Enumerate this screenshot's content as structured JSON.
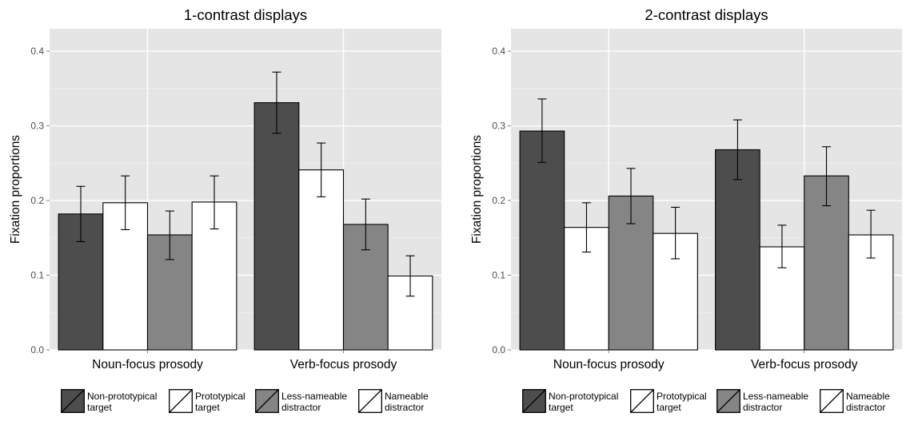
{
  "chart_data": [
    {
      "type": "bar",
      "title": "1-contrast displays",
      "xlabel": "",
      "ylabel": "Fixation proportions",
      "ylim": [
        0,
        0.43
      ],
      "yticks": [
        "0.0",
        "0.1",
        "0.2",
        "0.3",
        "0.4"
      ],
      "grid": true,
      "legend_position": "bottom",
      "categories": [
        "Noun-focus prosody",
        "Verb-focus prosody"
      ],
      "series": [
        {
          "name": "Non-prototypical target",
          "legend_lines": [
            "Non-prototypical",
            "target"
          ],
          "color": "#4d4d4d",
          "values": [
            0.182,
            0.331
          ],
          "err_low": [
            0.145,
            0.29
          ],
          "err_high": [
            0.219,
            0.372
          ]
        },
        {
          "name": "Prototypical target",
          "legend_lines": [
            "Prototypical",
            "target"
          ],
          "color": "#ffffff",
          "values": [
            0.197,
            0.241
          ],
          "err_low": [
            0.161,
            0.205
          ],
          "err_high": [
            0.233,
            0.277
          ]
        },
        {
          "name": "Less-nameable distractor",
          "legend_lines": [
            "Less-nameable",
            "distractor"
          ],
          "color": "#858585",
          "values": [
            0.154,
            0.168
          ],
          "err_low": [
            0.121,
            0.134
          ],
          "err_high": [
            0.186,
            0.202
          ]
        },
        {
          "name": "Nameable distractor",
          "legend_lines": [
            "Nameable",
            "distractor"
          ],
          "color": "#ffffff",
          "values": [
            0.198,
            0.099
          ],
          "err_low": [
            0.162,
            0.072
          ],
          "err_high": [
            0.233,
            0.126
          ]
        }
      ]
    },
    {
      "type": "bar",
      "title": "2-contrast displays",
      "xlabel": "",
      "ylabel": "Fixation proportions",
      "ylim": [
        0,
        0.43
      ],
      "yticks": [
        "0.0",
        "0.1",
        "0.2",
        "0.3",
        "0.4"
      ],
      "grid": true,
      "legend_position": "bottom",
      "categories": [
        "Noun-focus prosody",
        "Verb-focus prosody"
      ],
      "series": [
        {
          "name": "Non-prototypical target",
          "legend_lines": [
            "Non-prototypical",
            "target"
          ],
          "color": "#4d4d4d",
          "values": [
            0.293,
            0.268
          ],
          "err_low": [
            0.251,
            0.228
          ],
          "err_high": [
            0.336,
            0.308
          ]
        },
        {
          "name": "Prototypical target",
          "legend_lines": [
            "Prototypical",
            "target"
          ],
          "color": "#ffffff",
          "values": [
            0.164,
            0.138
          ],
          "err_low": [
            0.131,
            0.11
          ],
          "err_high": [
            0.197,
            0.167
          ]
        },
        {
          "name": "Less-nameable distractor",
          "legend_lines": [
            "Less-nameable",
            "distractor"
          ],
          "color": "#858585",
          "values": [
            0.206,
            0.233
          ],
          "err_low": [
            0.169,
            0.193
          ],
          "err_high": [
            0.243,
            0.272
          ]
        },
        {
          "name": "Nameable distractor",
          "legend_lines": [
            "Nameable",
            "distractor"
          ],
          "color": "#ffffff",
          "values": [
            0.156,
            0.154
          ],
          "err_low": [
            0.122,
            0.123
          ],
          "err_high": [
            0.191,
            0.187
          ]
        }
      ]
    }
  ]
}
